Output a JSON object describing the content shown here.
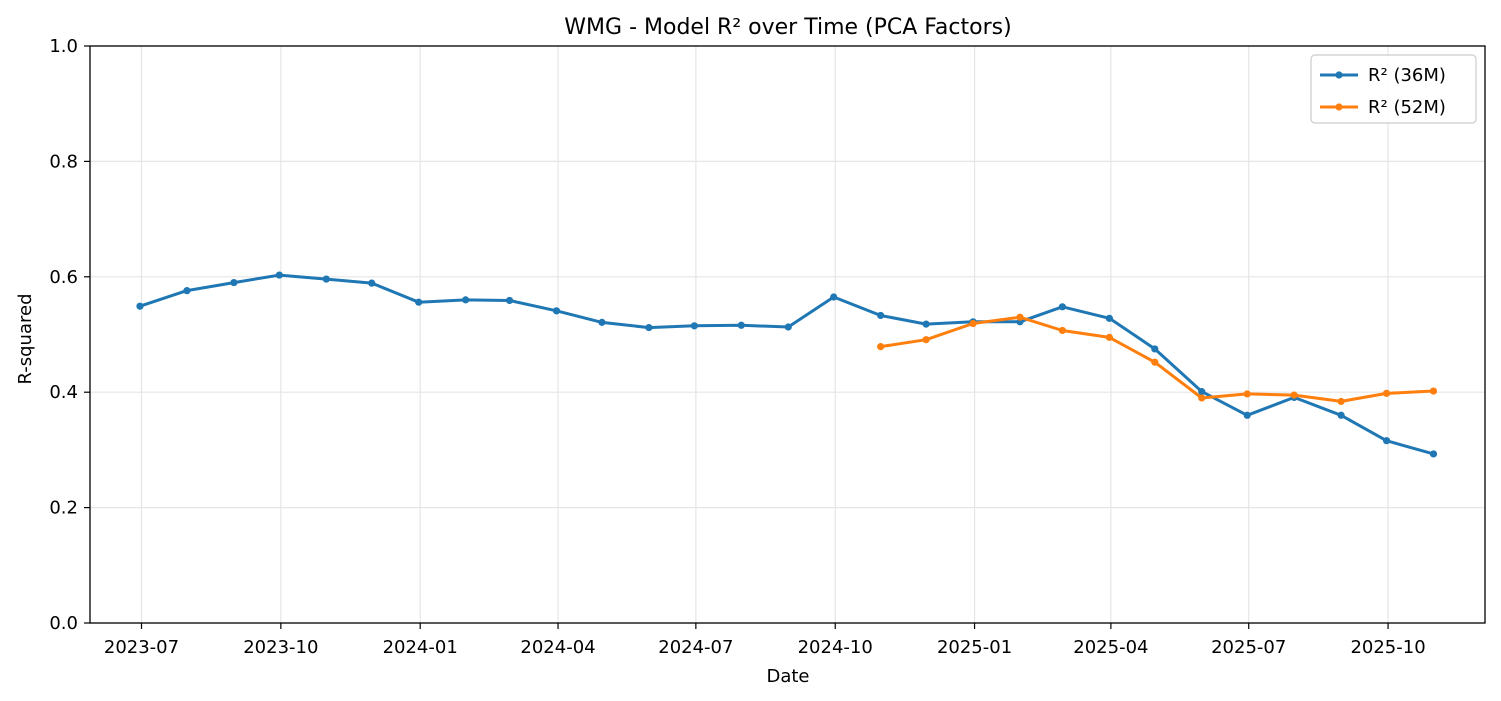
{
  "chart_data": {
    "type": "line",
    "title": "WMG - Model R² over Time (PCA Factors)",
    "xlabel": "Date",
    "ylabel": "R-squared",
    "ylim": [
      0.0,
      1.0
    ],
    "yticks": [
      "0.0",
      "0.2",
      "0.4",
      "0.6",
      "0.8",
      "1.0"
    ],
    "xticks": [
      "2023-07",
      "2023-10",
      "2024-01",
      "2024-04",
      "2024-07",
      "2024-10",
      "2025-01",
      "2025-04",
      "2025-07",
      "2025-10"
    ],
    "grid": true,
    "legend_position": "top-right",
    "series": [
      {
        "name": "R² (36M)",
        "color": "#1f77b4",
        "x": [
          "2023-06-30",
          "2023-07-31",
          "2023-08-31",
          "2023-09-30",
          "2023-10-31",
          "2023-11-30",
          "2023-12-31",
          "2024-01-31",
          "2024-02-29",
          "2024-03-31",
          "2024-04-30",
          "2024-05-31",
          "2024-06-30",
          "2024-07-31",
          "2024-08-31",
          "2024-09-30",
          "2024-10-31",
          "2024-11-30",
          "2024-12-31",
          "2025-01-31",
          "2025-02-28",
          "2025-03-31",
          "2025-04-30",
          "2025-05-31",
          "2025-06-30",
          "2025-07-31",
          "2025-08-31",
          "2025-09-30",
          "2025-10-31"
        ],
        "values": [
          0.549,
          0.576,
          0.59,
          0.603,
          0.596,
          0.589,
          0.556,
          0.56,
          0.559,
          0.541,
          0.521,
          0.512,
          0.515,
          0.516,
          0.513,
          0.565,
          0.533,
          0.518,
          0.522,
          0.522,
          0.548,
          0.528,
          0.475,
          0.401,
          0.36,
          0.391,
          0.36,
          0.316,
          0.293
        ]
      },
      {
        "name": "R² (52M)",
        "color": "#ff7f0e",
        "x": [
          "2024-10-31",
          "2024-11-30",
          "2024-12-31",
          "2025-01-31",
          "2025-02-28",
          "2025-03-31",
          "2025-04-30",
          "2025-05-31",
          "2025-06-30",
          "2025-07-31",
          "2025-08-31",
          "2025-09-30",
          "2025-10-31"
        ],
        "values": [
          0.479,
          0.491,
          0.519,
          0.53,
          0.507,
          0.495,
          0.452,
          0.39,
          0.397,
          0.395,
          0.384,
          0.398,
          0.402
        ]
      }
    ]
  }
}
